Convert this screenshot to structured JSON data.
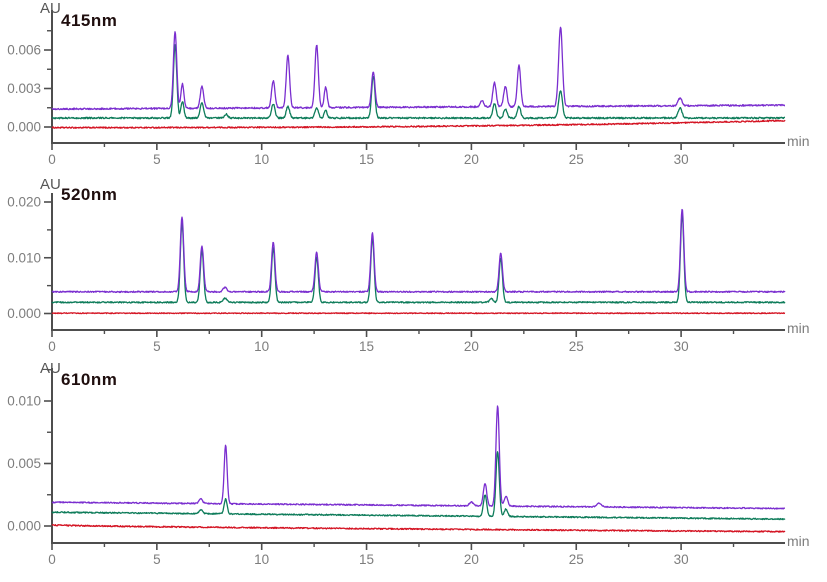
{
  "figure": {
    "background": "#ffffff",
    "axis_color": "#4e4e4e",
    "tick_label_color": "#7d7d7d",
    "title_color": "#1f0e0e",
    "trace_colors": {
      "purple": "#7a2ecf",
      "green": "#0e7c5a",
      "red": "#d41423"
    }
  },
  "chart_data": [
    {
      "type": "line",
      "title": "415nm",
      "ylabel": "AU",
      "xlabel": "min",
      "xlim": [
        0,
        35
      ],
      "ylim": [
        -0.0012,
        0.0091
      ],
      "grid": false,
      "legend": null,
      "xticks": [
        0,
        5,
        10,
        15,
        20,
        25,
        30
      ],
      "xticks_minor": [
        2.5,
        7.5,
        12.5,
        17.5,
        22.5,
        27.5,
        32.5
      ],
      "yticks": [
        0.0,
        0.003,
        0.006
      ],
      "ytick_labels": [
        "0.000",
        "0.003",
        "0.006"
      ],
      "yticks_minor": [
        0.0015,
        0.0045,
        0.0075
      ],
      "series": [
        {
          "name": "trace-purple",
          "color": "#7a2ecf",
          "baseline_start": 0.0014,
          "baseline_end": 0.0017,
          "baseline_pow": 1,
          "noise": 6e-05,
          "peaks": [
            [
              5.87,
              0.006,
              0.08
            ],
            [
              6.22,
              0.0019,
              0.07
            ],
            [
              7.15,
              0.0017,
              0.08
            ],
            [
              10.55,
              0.0021,
              0.08
            ],
            [
              11.25,
              0.0041,
              0.08
            ],
            [
              12.62,
              0.0049,
              0.08
            ],
            [
              13.05,
              0.0016,
              0.07
            ],
            [
              15.32,
              0.0028,
              0.08
            ],
            [
              20.5,
              0.0005,
              0.08
            ],
            [
              21.1,
              0.0019,
              0.08
            ],
            [
              21.62,
              0.0016,
              0.08
            ],
            [
              22.27,
              0.0032,
              0.08
            ],
            [
              24.25,
              0.0062,
              0.09
            ],
            [
              29.95,
              0.0006,
              0.09
            ]
          ]
        },
        {
          "name": "trace-green",
          "color": "#0e7c5a",
          "baseline_start": 0.0007,
          "baseline_end": 0.0007,
          "baseline_pow": 1,
          "noise": 6e-05,
          "peaks": [
            [
              5.87,
              0.0057,
              0.08
            ],
            [
              6.22,
              0.0013,
              0.07
            ],
            [
              7.15,
              0.0012,
              0.08
            ],
            [
              8.3,
              0.0003,
              0.08
            ],
            [
              10.55,
              0.0011,
              0.08
            ],
            [
              11.25,
              0.0009,
              0.08
            ],
            [
              12.62,
              0.0008,
              0.08
            ],
            [
              13.05,
              0.0006,
              0.07
            ],
            [
              15.32,
              0.0033,
              0.08
            ],
            [
              21.1,
              0.0011,
              0.08
            ],
            [
              21.62,
              0.0007,
              0.08
            ],
            [
              22.27,
              0.0009,
              0.08
            ],
            [
              24.25,
              0.0021,
              0.09
            ],
            [
              29.95,
              0.0008,
              0.09
            ]
          ]
        },
        {
          "name": "trace-red",
          "color": "#d41423",
          "baseline_start": -5e-05,
          "baseline_end": 0.0005,
          "baseline_pow": 2.5,
          "noise": 5e-05,
          "peaks": []
        }
      ]
    },
    {
      "type": "line",
      "title": "520nm",
      "ylabel": "AU",
      "xlabel": "min",
      "xlim": [
        0,
        35
      ],
      "ylim": [
        -0.003,
        0.0247
      ],
      "grid": false,
      "legend": null,
      "xticks": [
        0,
        5,
        10,
        15,
        20,
        25,
        30
      ],
      "xticks_minor": [
        2.5,
        7.5,
        12.5,
        17.5,
        22.5,
        27.5,
        32.5
      ],
      "yticks": [
        0.0,
        0.01,
        0.02
      ],
      "ytick_labels": [
        "0.000",
        "0.010",
        "0.020"
      ],
      "yticks_minor": [
        0.005,
        0.015
      ],
      "series": [
        {
          "name": "trace-purple",
          "color": "#7a2ecf",
          "baseline_start": 0.0039,
          "baseline_end": 0.0039,
          "baseline_pow": 1,
          "noise": 0.00012,
          "peaks": [
            [
              6.2,
              0.0134,
              0.08
            ],
            [
              7.15,
              0.0082,
              0.08
            ],
            [
              8.25,
              0.0008,
              0.09
            ],
            [
              10.55,
              0.0089,
              0.08
            ],
            [
              12.62,
              0.0071,
              0.08
            ],
            [
              15.28,
              0.0105,
              0.08
            ],
            [
              21.4,
              0.0069,
              0.08
            ],
            [
              30.05,
              0.0149,
              0.08
            ]
          ]
        },
        {
          "name": "trace-green",
          "color": "#0e7c5a",
          "baseline_start": 0.002,
          "baseline_end": 0.002,
          "baseline_pow": 1,
          "noise": 0.00012,
          "peaks": [
            [
              6.2,
              0.0143,
              0.08
            ],
            [
              7.15,
              0.0093,
              0.08
            ],
            [
              8.25,
              0.0008,
              0.09
            ],
            [
              10.55,
              0.0098,
              0.08
            ],
            [
              12.62,
              0.0082,
              0.08
            ],
            [
              15.28,
              0.0116,
              0.08
            ],
            [
              20.95,
              0.0007,
              0.08
            ],
            [
              21.4,
              0.0079,
              0.08
            ],
            [
              30.05,
              0.0158,
              0.08
            ]
          ]
        },
        {
          "name": "trace-red",
          "color": "#d41423",
          "baseline_start": 5e-05,
          "baseline_end": 5e-05,
          "baseline_pow": 1,
          "noise": 8e-05,
          "peaks": []
        }
      ]
    },
    {
      "type": "line",
      "title": "610nm",
      "ylabel": "AU",
      "xlabel": "min",
      "xlim": [
        0,
        35
      ],
      "ylim": [
        -0.0016,
        0.0127
      ],
      "grid": false,
      "legend": null,
      "xticks": [
        0,
        5,
        10,
        15,
        20,
        25,
        30
      ],
      "xticks_minor": [
        2.5,
        7.5,
        12.5,
        17.5,
        22.5,
        27.5,
        32.5
      ],
      "yticks": [
        0.0,
        0.005,
        0.01
      ],
      "ytick_labels": [
        "0.000",
        "0.005",
        "0.010"
      ],
      "yticks_minor": [
        0.0025,
        0.0075,
        0.0125
      ],
      "series": [
        {
          "name": "trace-purple",
          "color": "#7a2ecf",
          "baseline_start": 0.0019,
          "baseline_end": 0.0014,
          "baseline_pow": 1,
          "noise": 5e-05,
          "peaks": [
            [
              7.1,
              0.0004,
              0.08
            ],
            [
              8.28,
              0.0047,
              0.07
            ],
            [
              20.0,
              0.0003,
              0.09
            ],
            [
              20.65,
              0.0018,
              0.08
            ],
            [
              21.25,
              0.008,
              0.08
            ],
            [
              21.65,
              0.0008,
              0.08
            ],
            [
              26.1,
              0.0003,
              0.1
            ]
          ]
        },
        {
          "name": "trace-green",
          "color": "#0e7c5a",
          "baseline_start": 0.0011,
          "baseline_end": 0.00055,
          "baseline_pow": 1,
          "noise": 5e-05,
          "peaks": [
            [
              7.1,
              0.0003,
              0.08
            ],
            [
              8.28,
              0.0012,
              0.07
            ],
            [
              20.65,
              0.0017,
              0.08
            ],
            [
              21.25,
              0.0052,
              0.08
            ],
            [
              21.65,
              0.0006,
              0.08
            ]
          ]
        },
        {
          "name": "trace-red",
          "color": "#d41423",
          "baseline_start": 8e-05,
          "baseline_end": -0.00045,
          "baseline_pow": 0.7,
          "noise": 5e-05,
          "peaks": []
        }
      ]
    }
  ]
}
